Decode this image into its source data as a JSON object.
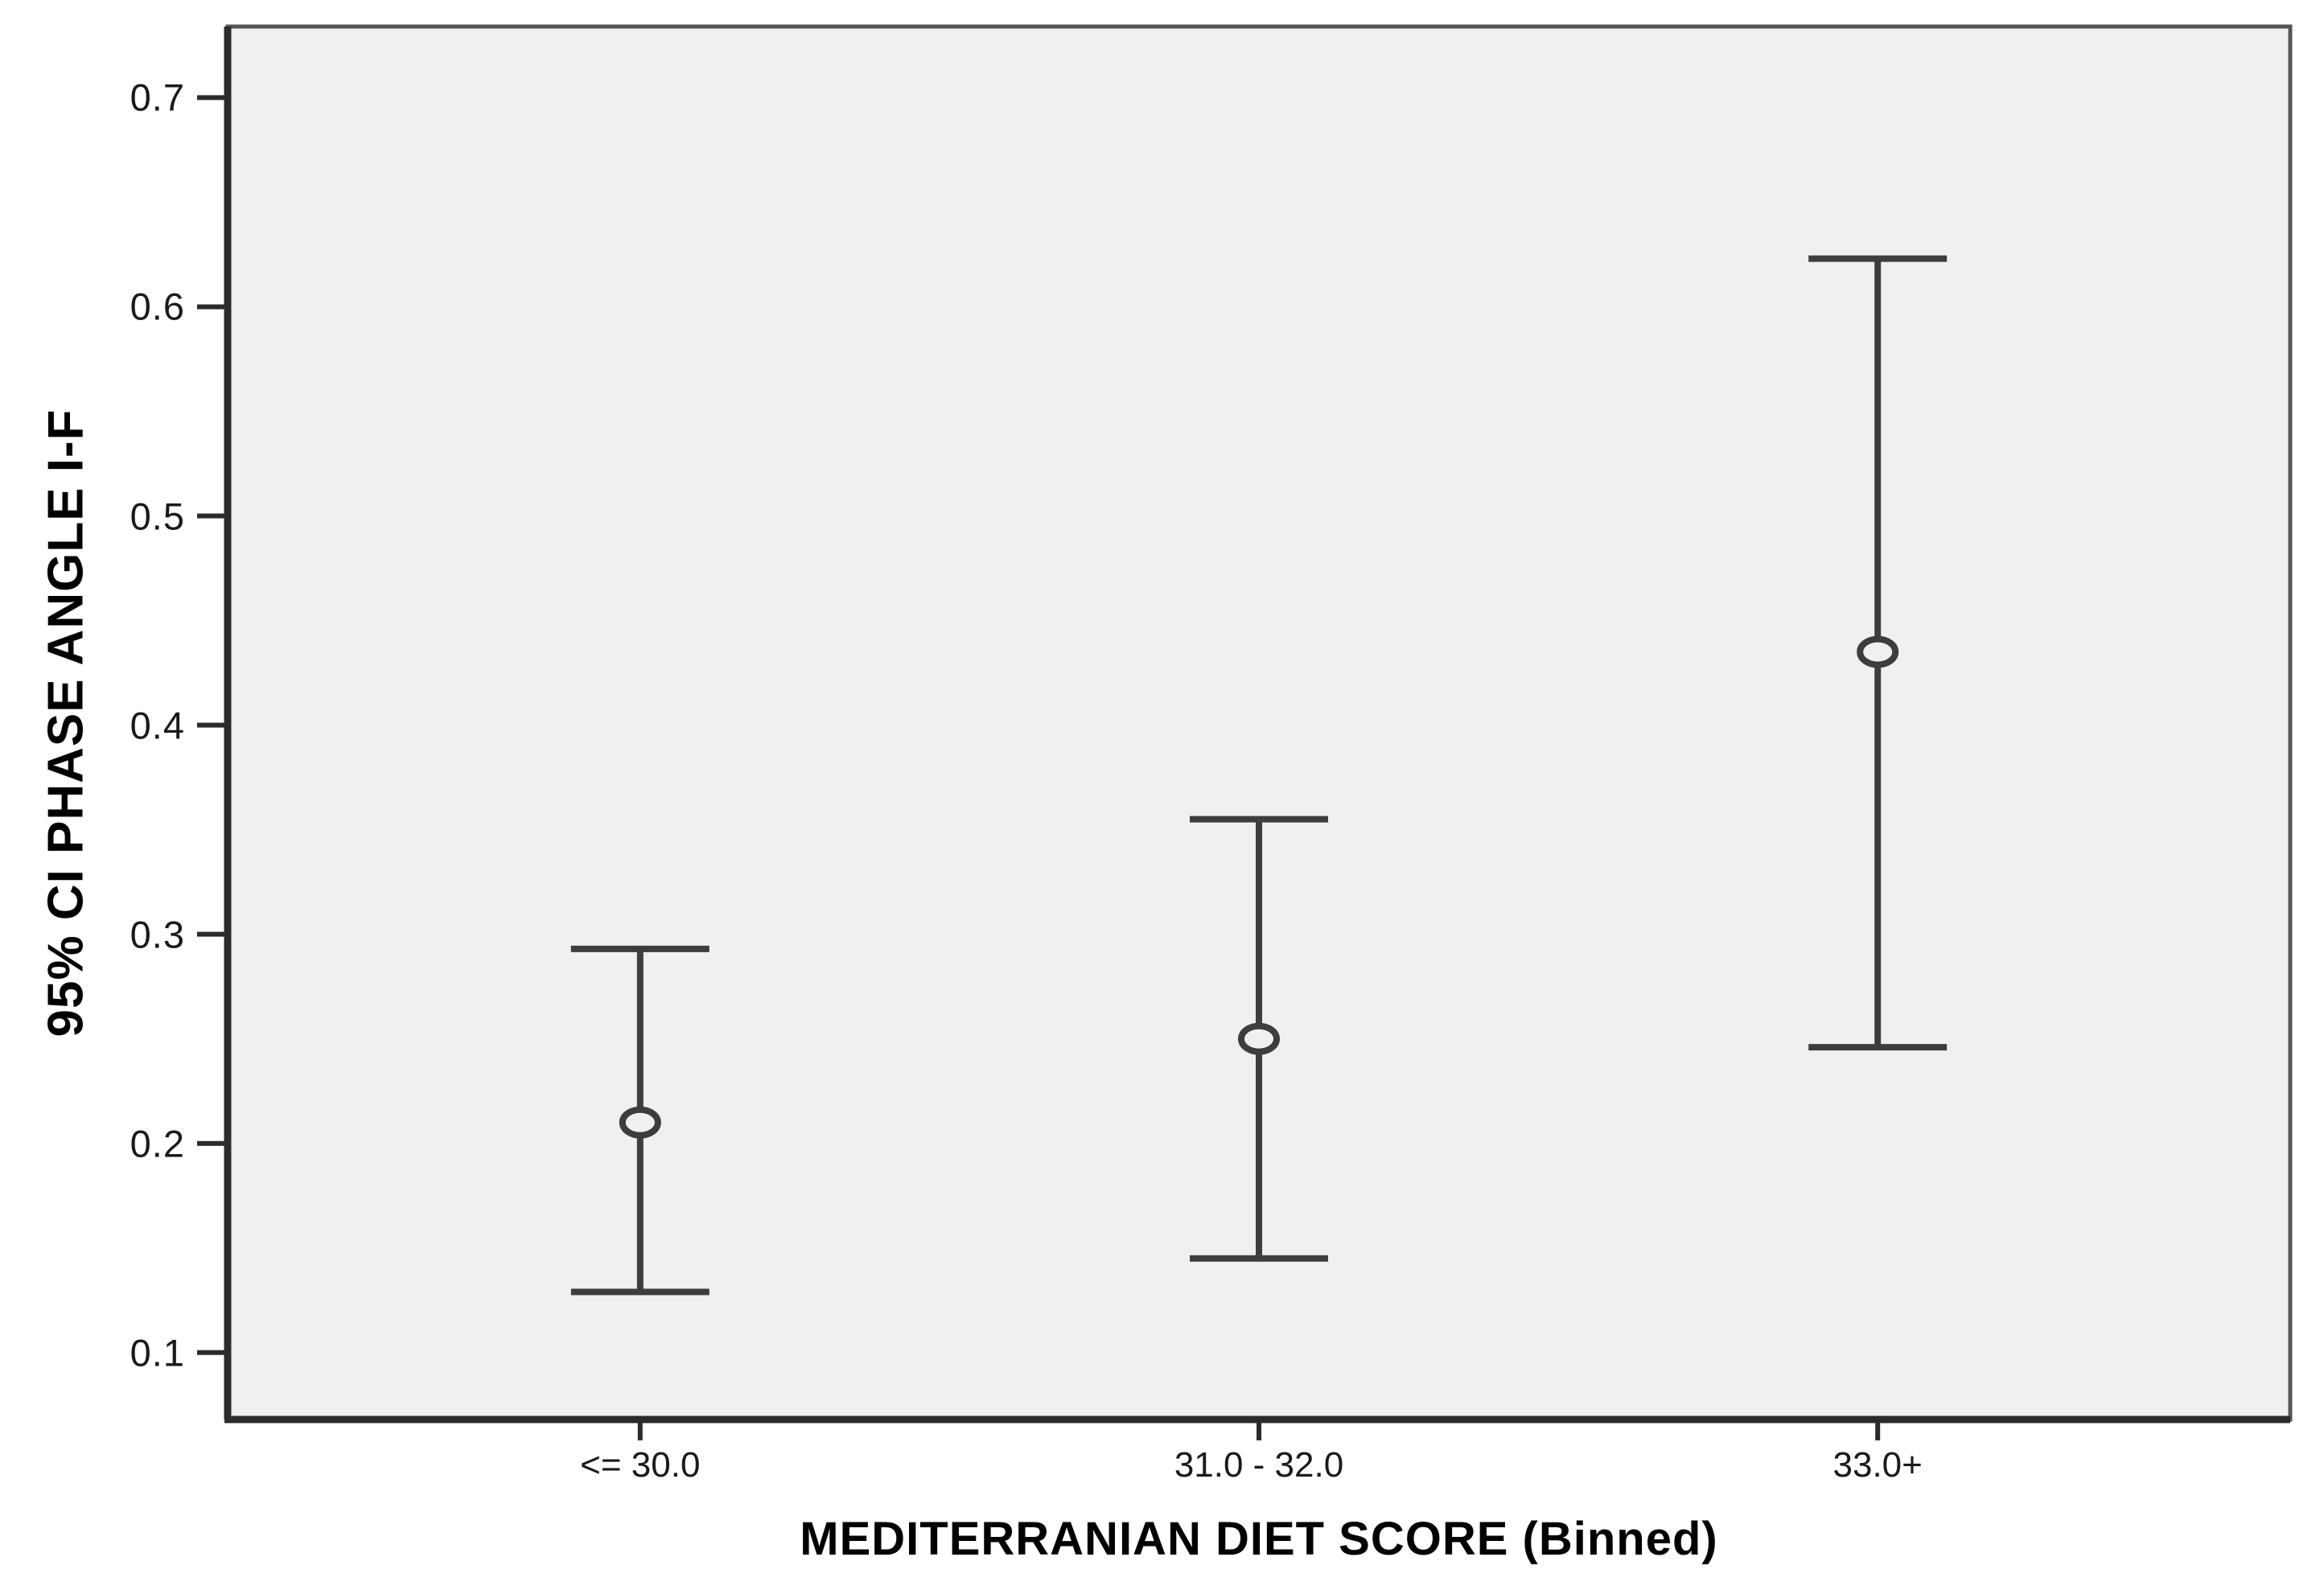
{
  "chart_data": {
    "type": "errorbar",
    "title": "",
    "xlabel": "MEDITERRANIAN DIET SCORE (Binned)",
    "ylabel": "95% CI PHASE ANGLE I-F",
    "categories": [
      "<= 30.0",
      "31.0 - 32.0",
      "33.0+"
    ],
    "series": [
      {
        "name": "95% CI PHASE ANGLE I-F",
        "means": [
          0.21,
          0.25,
          0.435
        ],
        "lower": [
          0.129,
          0.145,
          0.246
        ],
        "upper": [
          0.293,
          0.355,
          0.623
        ]
      }
    ],
    "yticks": [
      0.7,
      0.6,
      0.5,
      0.4,
      0.3,
      0.2,
      0.1
    ],
    "ylim": [
      0.068,
      0.734
    ],
    "grid": false,
    "legend_position": null,
    "marker": "open-circle",
    "colors": {
      "plot_background": "#f0f0ee",
      "axis": "#2b2b2b",
      "frame": "#565656",
      "errorbar": "#3d3d3d",
      "text": "#1a1a1a"
    }
  }
}
